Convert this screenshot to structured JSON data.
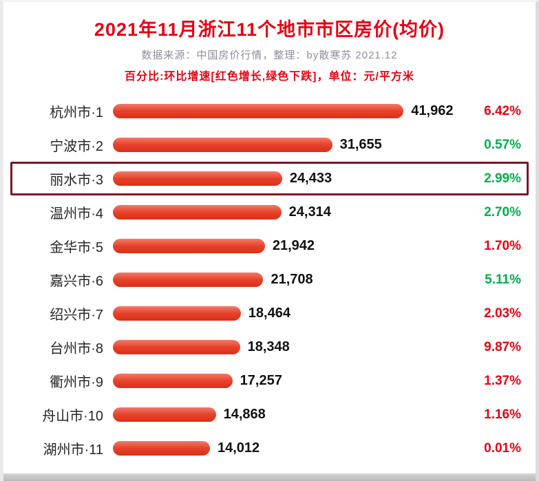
{
  "header": {
    "title": "2021年11月浙江11个地市市区房价(均价)",
    "subtitle": "数据来源：中国房价行情，整理：by散寒苏 2021.12",
    "note": "百分比:环比增速[红色增长,绿色下跌]，单位：元/平方米"
  },
  "colors": {
    "title_red": "#e60012",
    "subtitle_gray": "#8e8e9e",
    "bar_red": "#e6422a",
    "pct_up_red": "#e60012",
    "pct_down_green": "#00ae4d",
    "highlight_border": "#7c1526"
  },
  "chart_data": {
    "type": "bar",
    "orientation": "horizontal",
    "title": "2021年11月浙江11个地市市区房价(均价)",
    "unit": "元/平方米",
    "xlim": [
      0,
      45000
    ],
    "legend_note": "红色增长, 绿色下跌 (环比增速)",
    "max_value": 41962,
    "highlighted_index": 2,
    "categories": [
      "杭州市·1",
      "宁波市·2",
      "丽水市·3",
      "温州市·4",
      "金华市·5",
      "嘉兴市·6",
      "绍兴市·7",
      "台州市·8",
      "衢州市·9",
      "舟山市·10",
      "湖州市·11"
    ],
    "values": [
      41962,
      31655,
      24433,
      24314,
      21942,
      21708,
      18464,
      18348,
      17257,
      14868,
      14012
    ],
    "rows": [
      {
        "city": "杭州市·1",
        "value": 41962,
        "value_label": "41,962",
        "pct": "6.42%",
        "pct_dir": "up",
        "highlight": false
      },
      {
        "city": "宁波市·2",
        "value": 31655,
        "value_label": "31,655",
        "pct": "0.57%",
        "pct_dir": "down",
        "highlight": false
      },
      {
        "city": "丽水市·3",
        "value": 24433,
        "value_label": "24,433",
        "pct": "2.99%",
        "pct_dir": "down",
        "highlight": true
      },
      {
        "city": "温州市·4",
        "value": 24314,
        "value_label": "24,314",
        "pct": "2.70%",
        "pct_dir": "down",
        "highlight": false
      },
      {
        "city": "金华市·5",
        "value": 21942,
        "value_label": "21,942",
        "pct": "1.70%",
        "pct_dir": "up",
        "highlight": false
      },
      {
        "city": "嘉兴市·6",
        "value": 21708,
        "value_label": "21,708",
        "pct": "5.11%",
        "pct_dir": "down",
        "highlight": false
      },
      {
        "city": "绍兴市·7",
        "value": 18464,
        "value_label": "18,464",
        "pct": "2.03%",
        "pct_dir": "up",
        "highlight": false
      },
      {
        "city": "台州市·8",
        "value": 18348,
        "value_label": "18,348",
        "pct": "9.87%",
        "pct_dir": "up",
        "highlight": false
      },
      {
        "city": "衢州市·9",
        "value": 17257,
        "value_label": "17,257",
        "pct": "1.37%",
        "pct_dir": "up",
        "highlight": false
      },
      {
        "city": "舟山市·10",
        "value": 14868,
        "value_label": "14,868",
        "pct": "1.16%",
        "pct_dir": "up",
        "highlight": false
      },
      {
        "city": "湖州市·11",
        "value": 14012,
        "value_label": "14,012",
        "pct": "0.01%",
        "pct_dir": "up",
        "highlight": false
      }
    ]
  }
}
